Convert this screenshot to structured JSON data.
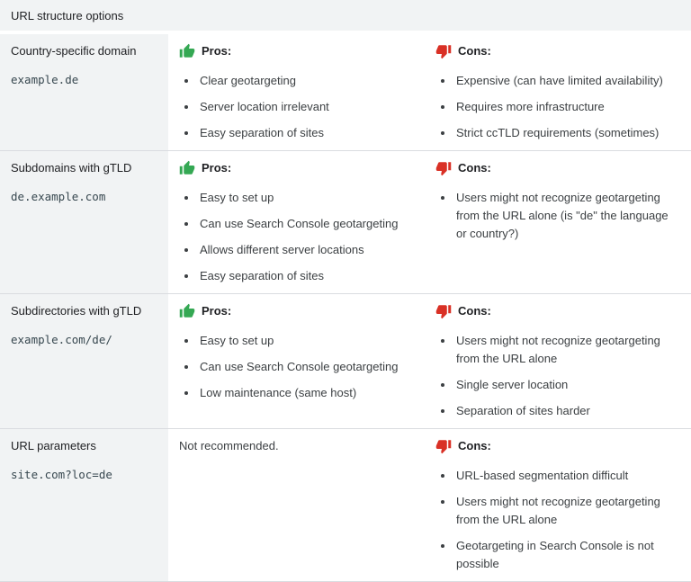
{
  "table": {
    "title": "URL structure options",
    "pros_label": "Pros:",
    "cons_label": "Cons:",
    "colors": {
      "pros_green": "#34a853",
      "cons_red": "#d93025",
      "header_bg": "#f1f3f4",
      "option_col_bg": "#f1f3f4",
      "border": "#dadce0",
      "text": "#3c4043",
      "code_text": "#37474f"
    },
    "icons": {
      "pros": "thumb-up-icon",
      "cons": "thumb-down-icon"
    },
    "rows": [
      {
        "option": "Country-specific domain",
        "example_url": "example.de",
        "pros": [
          "Clear geotargeting",
          "Server location irrelevant",
          "Easy separation of sites"
        ],
        "cons": [
          "Expensive (can have limited availability)",
          "Requires more infrastructure",
          "Strict ccTLD requirements (sometimes)"
        ]
      },
      {
        "option": "Subdomains with gTLD",
        "example_url": "de.example.com",
        "pros": [
          "Easy to set up",
          "Can use Search Console geotargeting",
          "Allows different server locations",
          "Easy separation of sites"
        ],
        "cons": [
          "Users might not recognize geotargeting from the URL alone (is \"de\" the language or country?)"
        ]
      },
      {
        "option": "Subdirectories with gTLD",
        "example_url": "example.com/de/",
        "pros": [
          "Easy to set up",
          "Can use Search Console geotargeting",
          "Low maintenance (same host)"
        ],
        "cons": [
          "Users might not recognize geotargeting from the URL alone",
          "Single server location",
          "Separation of sites harder"
        ]
      },
      {
        "option": "URL parameters",
        "example_url": "site.com?loc=de",
        "pros_note": "Not recommended.",
        "pros": [],
        "cons": [
          "URL-based segmentation difficult",
          "Users might not recognize geotargeting from the URL alone",
          "Geotargeting in Search Console is not possible"
        ]
      }
    ]
  }
}
